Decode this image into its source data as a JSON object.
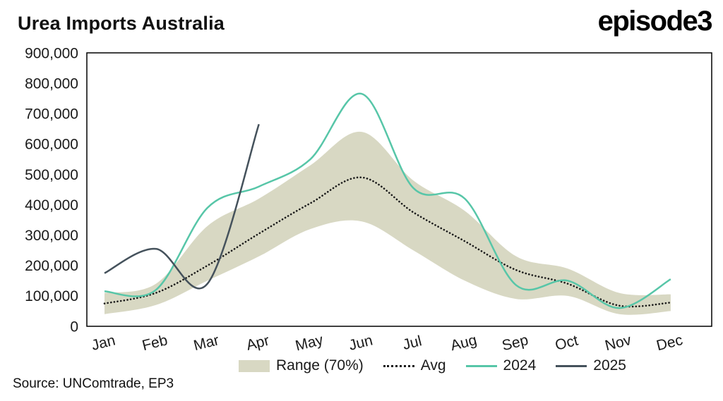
{
  "header": {
    "title": "Urea Imports Australia",
    "logo": "episode3"
  },
  "footer": {
    "source": "Source: UNComtrade, EP3"
  },
  "chart_data": {
    "type": "line",
    "title": "Urea Imports Australia",
    "xlabel": "",
    "ylabel": "",
    "categories": [
      "Jan",
      "Feb",
      "Mar",
      "Apr",
      "May",
      "Jun",
      "Jul",
      "Aug",
      "Sep",
      "Oct",
      "Nov",
      "Dec"
    ],
    "ylim": [
      0,
      900000
    ],
    "ytick_step": 100000,
    "ytick_labels": [
      "0",
      "100,000",
      "200,000",
      "300,000",
      "400,000",
      "500,000",
      "600,000",
      "700,000",
      "800,000",
      "900,000"
    ],
    "grid": false,
    "legend_position": "bottom",
    "legend": [
      "Range (70%)",
      "Avg",
      "2024",
      "2025"
    ],
    "band": {
      "name": "Range (70%)",
      "color": "#d8d8c3",
      "upper": [
        110000,
        140000,
        330000,
        420000,
        530000,
        640000,
        480000,
        380000,
        230000,
        190000,
        110000,
        105000
      ],
      "lower": [
        40000,
        70000,
        150000,
        230000,
        320000,
        345000,
        250000,
        150000,
        90000,
        100000,
        40000,
        50000
      ]
    },
    "series": [
      {
        "name": "Avg",
        "color": "#1a1a1a",
        "style": "dotted",
        "values": [
          75000,
          110000,
          200000,
          305000,
          405000,
          490000,
          375000,
          280000,
          185000,
          140000,
          68000,
          78000
        ]
      },
      {
        "name": "2024",
        "color": "#57c6a8",
        "style": "solid",
        "values": [
          115000,
          120000,
          390000,
          460000,
          550000,
          765000,
          455000,
          420000,
          135000,
          150000,
          60000,
          155000
        ]
      },
      {
        "name": "2025",
        "color": "#45525c",
        "style": "solid",
        "values": [
          175000,
          255000,
          140000,
          665000
        ]
      }
    ]
  }
}
